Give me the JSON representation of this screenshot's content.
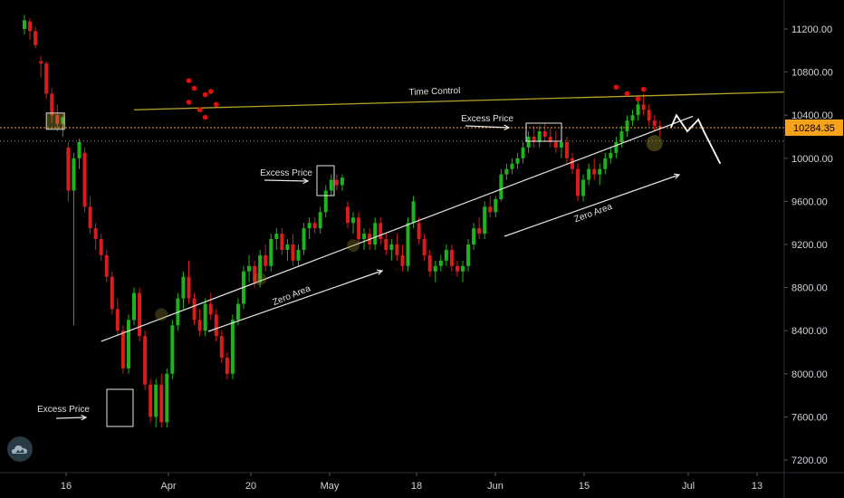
{
  "chart_data": {
    "type": "candlestick",
    "title": "",
    "y_ticks": [
      11200,
      10800,
      10400,
      10000,
      9600,
      9200,
      8800,
      8400,
      8000,
      7600,
      7200
    ],
    "x_ticks": [
      "16",
      "Apr",
      "20",
      "May",
      "18",
      "Jun",
      "15",
      "Jul",
      "13"
    ],
    "ylim": [
      7100,
      11450
    ],
    "current_price": "10284.35",
    "up_color": "#1db31d",
    "down_color": "#d91c1c",
    "candles": [
      [
        11200,
        11330,
        11150,
        11280
      ],
      [
        11270,
        11300,
        11100,
        11180
      ],
      [
        11180,
        11220,
        11020,
        11050
      ],
      [
        10900,
        10950,
        10750,
        10880
      ],
      [
        10880,
        10900,
        10550,
        10600
      ],
      [
        10600,
        10650,
        10330,
        10400
      ],
      [
        10400,
        10500,
        10250,
        10320
      ],
      [
        10320,
        10400,
        10200,
        10380
      ],
      [
        10100,
        10150,
        9600,
        9700
      ],
      [
        9700,
        10050,
        8450,
        10000
      ],
      [
        10000,
        10180,
        9900,
        10150
      ],
      [
        10050,
        10100,
        9500,
        9550
      ],
      [
        9550,
        9650,
        9300,
        9350
      ],
      [
        9350,
        9400,
        9150,
        9250
      ],
      [
        9250,
        9300,
        9050,
        9100
      ],
      [
        9100,
        9150,
        8850,
        8900
      ],
      [
        8900,
        8950,
        8550,
        8600
      ],
      [
        8600,
        8700,
        8350,
        8400
      ],
      [
        8400,
        8450,
        8000,
        8050
      ],
      [
        8050,
        8550,
        8000,
        8500
      ],
      [
        8500,
        8800,
        8450,
        8750
      ],
      [
        8750,
        8800,
        8300,
        8350
      ],
      [
        8350,
        8400,
        7850,
        7900
      ],
      [
        7900,
        7950,
        7550,
        7600
      ],
      [
        7600,
        7950,
        7500,
        7900
      ],
      [
        7900,
        8000,
        7500,
        7550
      ],
      [
        7550,
        8050,
        7500,
        8000
      ],
      [
        8000,
        8500,
        7950,
        8450
      ],
      [
        8450,
        8750,
        8400,
        8700
      ],
      [
        8700,
        8950,
        8600,
        8900
      ],
      [
        8900,
        9050,
        8650,
        8700
      ],
      [
        8700,
        8750,
        8450,
        8500
      ],
      [
        8500,
        8600,
        8350,
        8400
      ],
      [
        8400,
        8700,
        8350,
        8650
      ],
      [
        8650,
        8750,
        8500,
        8550
      ],
      [
        8550,
        8600,
        8300,
        8350
      ],
      [
        8350,
        8400,
        8100,
        8150
      ],
      [
        8150,
        8200,
        7950,
        8000
      ],
      [
        8000,
        8550,
        7950,
        8500
      ],
      [
        8500,
        8700,
        8450,
        8650
      ],
      [
        8650,
        9000,
        8600,
        8950
      ],
      [
        8950,
        9100,
        8850,
        9000
      ],
      [
        9000,
        9050,
        8800,
        8850
      ],
      [
        8850,
        9150,
        8800,
        9100
      ],
      [
        9100,
        9200,
        8950,
        9000
      ],
      [
        9000,
        9300,
        8950,
        9250
      ],
      [
        9250,
        9350,
        9150,
        9300
      ],
      [
        9300,
        9350,
        9100,
        9150
      ],
      [
        9150,
        9250,
        9050,
        9200
      ],
      [
        9200,
        9300,
        9000,
        9050
      ],
      [
        9050,
        9200,
        9000,
        9150
      ],
      [
        9150,
        9400,
        9100,
        9350
      ],
      [
        9350,
        9450,
        9250,
        9400
      ],
      [
        9400,
        9450,
        9300,
        9350
      ],
      [
        9350,
        9550,
        9300,
        9500
      ],
      [
        9500,
        9750,
        9450,
        9700
      ],
      [
        9700,
        9850,
        9650,
        9800
      ],
      [
        9800,
        9850,
        9700,
        9750
      ],
      [
        9750,
        9850,
        9700,
        9820
      ],
      [
        9550,
        9600,
        9350,
        9400
      ],
      [
        9400,
        9500,
        9300,
        9450
      ],
      [
        9450,
        9500,
        9200,
        9250
      ],
      [
        9250,
        9350,
        9150,
        9300
      ],
      [
        9300,
        9350,
        9150,
        9200
      ],
      [
        9200,
        9450,
        9150,
        9400
      ],
      [
        9400,
        9450,
        9200,
        9250
      ],
      [
        9250,
        9300,
        9100,
        9150
      ],
      [
        9150,
        9250,
        9050,
        9200
      ],
      [
        9200,
        9300,
        9050,
        9100
      ],
      [
        9100,
        9200,
        8950,
        9000
      ],
      [
        9000,
        9450,
        8950,
        9400
      ],
      [
        9400,
        9650,
        9350,
        9600
      ],
      [
        9400,
        9450,
        9200,
        9250
      ],
      [
        9250,
        9300,
        9050,
        9100
      ],
      [
        9100,
        9150,
        8900,
        8950
      ],
      [
        8950,
        9050,
        8850,
        9000
      ],
      [
        9000,
        9100,
        8950,
        9050
      ],
      [
        9050,
        9200,
        9000,
        9150
      ],
      [
        9150,
        9200,
        8950,
        9000
      ],
      [
        9000,
        9050,
        8900,
        8950
      ],
      [
        8950,
        9050,
        8850,
        9000
      ],
      [
        9000,
        9250,
        8950,
        9200
      ],
      [
        9200,
        9400,
        9150,
        9350
      ],
      [
        9350,
        9450,
        9250,
        9300
      ],
      [
        9300,
        9600,
        9250,
        9550
      ],
      [
        9550,
        9650,
        9450,
        9500
      ],
      [
        9500,
        9650,
        9450,
        9620
      ],
      [
        9620,
        9900,
        9600,
        9850
      ],
      [
        9850,
        9950,
        9800,
        9900
      ],
      [
        9900,
        10000,
        9850,
        9950
      ],
      [
        9950,
        10050,
        9900,
        10000
      ],
      [
        10000,
        10150,
        9950,
        10100
      ],
      [
        10100,
        10250,
        10050,
        10200
      ],
      [
        10200,
        10300,
        10100,
        10150
      ],
      [
        10150,
        10300,
        10100,
        10250
      ],
      [
        10250,
        10330,
        10150,
        10200
      ],
      [
        10200,
        10280,
        10100,
        10150
      ],
      [
        10150,
        10250,
        10050,
        10100
      ],
      [
        10100,
        10200,
        10000,
        10150
      ],
      [
        10150,
        10200,
        9950,
        10000
      ],
      [
        10000,
        10050,
        9850,
        9900
      ],
      [
        9900,
        9950,
        9600,
        9650
      ],
      [
        9650,
        9850,
        9600,
        9800
      ],
      [
        9800,
        9950,
        9750,
        9900
      ],
      [
        9900,
        10000,
        9800,
        9850
      ],
      [
        9850,
        9950,
        9750,
        9900
      ],
      [
        9900,
        10050,
        9850,
        10000
      ],
      [
        10000,
        10100,
        9950,
        10050
      ],
      [
        10050,
        10200,
        10000,
        10150
      ],
      [
        10150,
        10300,
        10100,
        10250
      ],
      [
        10250,
        10400,
        10200,
        10350
      ],
      [
        10350,
        10450,
        10300,
        10400
      ],
      [
        10400,
        10550,
        10350,
        10500
      ],
      [
        10500,
        10600,
        10400,
        10450
      ],
      [
        10450,
        10500,
        10300,
        10350
      ],
      [
        10350,
        10400,
        10250,
        10300
      ],
      [
        10300,
        10350,
        10200,
        10280
      ]
    ],
    "dots": [
      [
        10720,
        30
      ],
      [
        10650,
        31
      ],
      [
        10590,
        33
      ],
      [
        10620,
        34
      ],
      [
        10520,
        30
      ],
      [
        10450,
        32
      ],
      [
        10500,
        35
      ],
      [
        10380,
        33
      ],
      [
        10660,
        108
      ],
      [
        10600,
        110
      ],
      [
        10550,
        112
      ],
      [
        10640,
        113
      ]
    ],
    "annotations": {
      "time_control": "Time Control",
      "excess_price": "Excess Price",
      "zero_area": "Zero Area"
    },
    "lines": {
      "time_control": [
        [
          20,
          10450
        ],
        [
          118,
          10615
        ]
      ],
      "trend": [
        [
          14,
          8300
        ],
        [
          122,
          10390
        ]
      ],
      "current_price_line": 10284.35,
      "dotted_level": 10160
    },
    "projection": [
      [
        10285,
        118
      ],
      [
        10400,
        119
      ],
      [
        10250,
        121
      ],
      [
        10360,
        123
      ],
      [
        10250,
        124
      ],
      [
        9950,
        127
      ]
    ]
  }
}
